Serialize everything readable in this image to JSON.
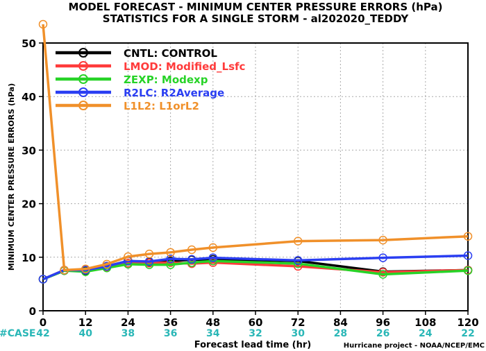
{
  "chart_data": {
    "type": "line",
    "title": "MODEL FORECAST - MINIMUM CENTER PRESSURE ERRORS (hPa)",
    "subtitle": "STATISTICS FOR A SINGLE STORM - al202020_TEDDY",
    "xlabel": "Forecast lead time (hr)",
    "ylabel": "MINIMUM CENTER PRESSURE ERRORS (hPa)",
    "xlim": [
      0,
      120
    ],
    "ylim": [
      0,
      50
    ],
    "xticks": [
      0,
      12,
      24,
      36,
      48,
      60,
      72,
      84,
      96,
      108,
      120
    ],
    "yticks": [
      0,
      10,
      20,
      30,
      40,
      50
    ],
    "grid": true,
    "legend_position": "top-left",
    "case_label": "#CASE",
    "cases": [
      42,
      40,
      38,
      36,
      34,
      32,
      30,
      28,
      26,
      24,
      22
    ],
    "credit": "Hurricane project - NOAA/NCEP/EMC",
    "series": [
      {
        "name": "CNTL: CONTROL",
        "color": "#000000",
        "x": [
          0,
          6,
          12,
          18,
          24,
          30,
          36,
          42,
          48,
          72,
          96,
          120
        ],
        "y": [
          5.9,
          7.5,
          7.5,
          8.3,
          9.3,
          9.1,
          9.3,
          9.5,
          9.6,
          9.3,
          7.3,
          7.6
        ]
      },
      {
        "name": "LMOD: Modified_Lsfc",
        "color": "#ff3b3b",
        "x": [
          0,
          6,
          12,
          18,
          24,
          30,
          36,
          42,
          48,
          72,
          96,
          120
        ],
        "y": [
          5.9,
          7.6,
          7.6,
          8.2,
          8.9,
          8.9,
          9.0,
          8.8,
          9.0,
          8.3,
          7.2,
          7.6
        ]
      },
      {
        "name": "ZEXP: Modexp",
        "color": "#27d327",
        "x": [
          0,
          6,
          12,
          18,
          24,
          30,
          36,
          42,
          48,
          72,
          96,
          120
        ],
        "y": [
          5.9,
          7.5,
          7.3,
          8.0,
          8.7,
          8.6,
          8.6,
          9.0,
          9.3,
          8.8,
          6.8,
          7.5
        ]
      },
      {
        "name": "R2LC: R2Average",
        "color": "#2a3ef2",
        "x": [
          0,
          6,
          12,
          18,
          24,
          30,
          36,
          42,
          48,
          72,
          96,
          120
        ],
        "y": [
          5.9,
          7.6,
          7.6,
          8.3,
          9.3,
          9.2,
          9.7,
          9.6,
          9.9,
          9.4,
          9.9,
          10.3
        ]
      },
      {
        "name": "L1L2: L1orL2",
        "color": "#f0902a",
        "x": [
          0,
          6,
          12,
          18,
          24,
          30,
          36,
          42,
          48,
          72,
          96,
          120
        ],
        "y": [
          53.5,
          7.6,
          7.8,
          8.7,
          10.1,
          10.6,
          10.9,
          11.4,
          11.8,
          13.0,
          13.2,
          13.9
        ]
      }
    ]
  }
}
